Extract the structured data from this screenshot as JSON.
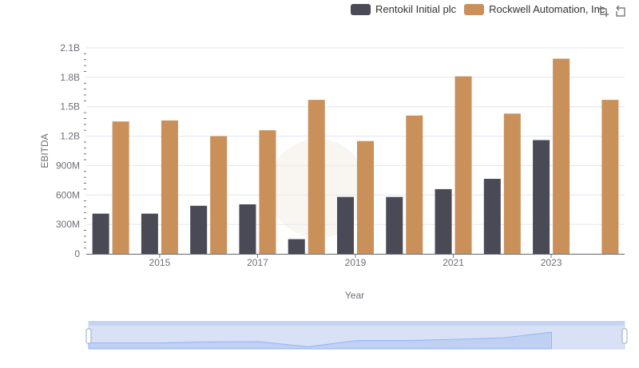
{
  "legend": {
    "items": [
      {
        "label": "Rentokil Initial plc",
        "color": "#4a4a56"
      },
      {
        "label": "Rockwell Automation, Inc.",
        "color": "#c9905a"
      }
    ]
  },
  "toolbar": {
    "zoom_icon": "zoom-select-icon",
    "restore_icon": "restore-icon"
  },
  "chart_data": {
    "type": "bar",
    "xlabel": "Year",
    "ylabel": "EBITDA",
    "categories": [
      "2014",
      "2015",
      "2016",
      "2017",
      "2018",
      "2019",
      "2020",
      "2021",
      "2022",
      "2023",
      "2024"
    ],
    "x_tick_labels": [
      "2015",
      "2017",
      "2019",
      "2021",
      "2023"
    ],
    "y_ticks": [
      0,
      300000000,
      600000000,
      900000000,
      1200000000,
      1500000000,
      1800000000,
      2100000000
    ],
    "y_tick_labels": [
      "0",
      "300M",
      "600M",
      "900M",
      "1.2B",
      "1.5B",
      "1.8B",
      "2.1B"
    ],
    "ylim": [
      0,
      2100000000
    ],
    "grid": true,
    "legend_position": "top-right",
    "series": [
      {
        "name": "Rentokil Initial plc",
        "color": "#4a4a56",
        "values": [
          410000000,
          410000000,
          490000000,
          505000000,
          150000000,
          580000000,
          580000000,
          660000000,
          765000000,
          1160000000,
          null
        ]
      },
      {
        "name": "Rockwell Automation, Inc.",
        "color": "#c9905a",
        "values": [
          1350000000,
          1360000000,
          1200000000,
          1260000000,
          1570000000,
          1150000000,
          1410000000,
          1810000000,
          1430000000,
          1990000000,
          1570000000
        ]
      }
    ],
    "data_zoom": {
      "start": 0,
      "end": 100
    }
  }
}
